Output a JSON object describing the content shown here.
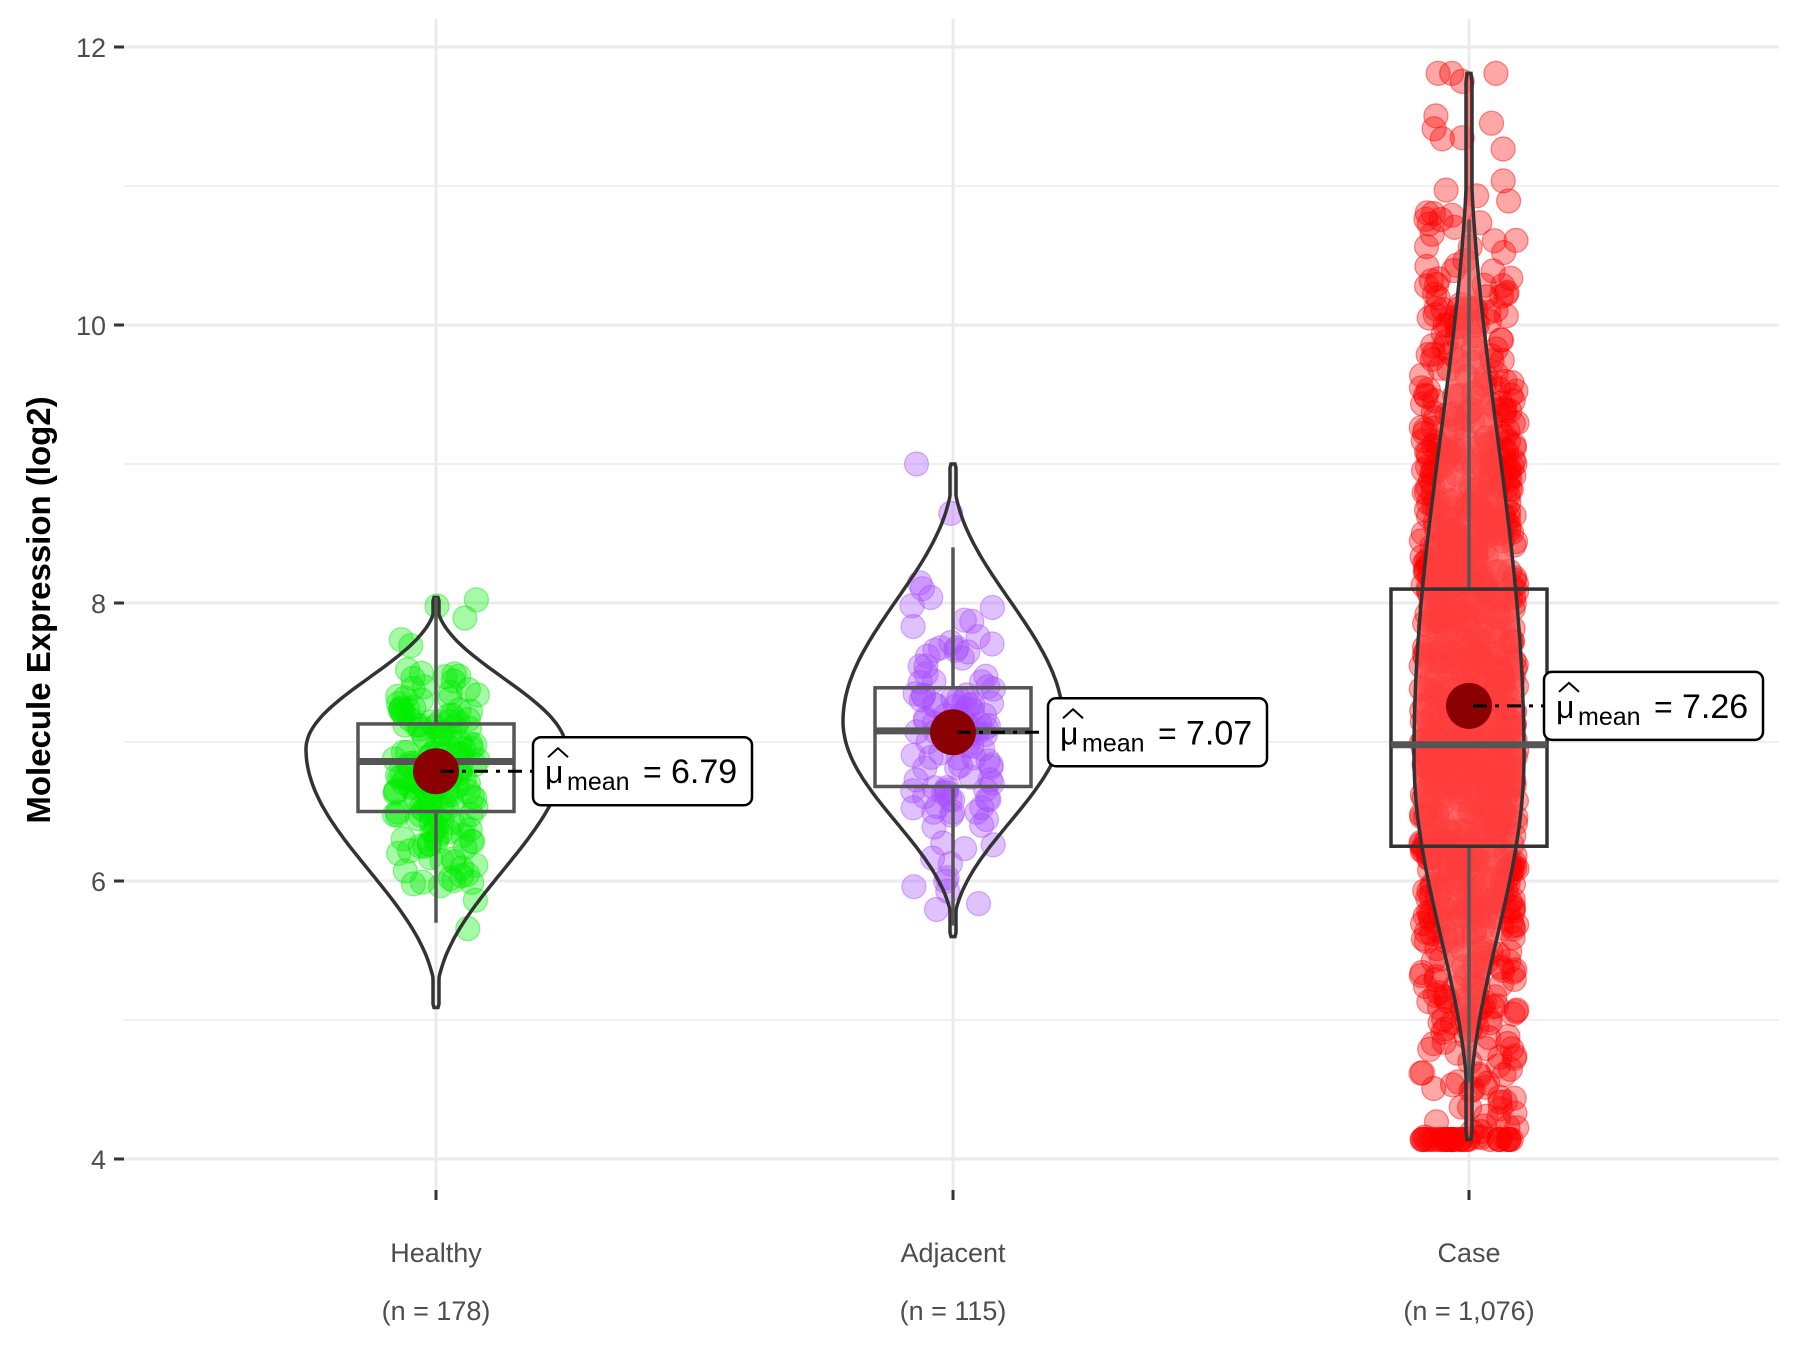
{
  "chart_data": {
    "type": "violin-box-jitter",
    "title": "",
    "xlabel": "",
    "ylabel": "Molecule Expression (log2)",
    "ylim": [
      3.8,
      12.2
    ],
    "yticks": [
      4,
      6,
      8,
      10,
      12
    ],
    "ytick_labels": [
      "4",
      "6",
      "8",
      "10",
      "12"
    ],
    "grid": true,
    "legend": "none",
    "groups": [
      {
        "name": "Healthy",
        "n_label": "(n = 178)",
        "n": 178,
        "color": "#00ee00",
        "violin": {
          "min": 5.09,
          "max": 8.04,
          "peak": 6.95
        },
        "box": {
          "q1": 6.5,
          "median": 6.86,
          "q3": 7.13,
          "whisker_low": 5.7,
          "whisker_high": 8.04
        },
        "mean": 6.79,
        "mean_label": "6.79"
      },
      {
        "name": "Adjacent",
        "n_label": "(n = 115)",
        "n": 115,
        "color": "#a64dff",
        "violin": {
          "min": 5.6,
          "max": 9.0,
          "peak": 7.15
        },
        "box": {
          "q1": 6.68,
          "median": 7.08,
          "q3": 7.39,
          "whisker_low": 5.68,
          "whisker_high": 8.4
        },
        "mean": 7.07,
        "mean_label": "7.07"
      },
      {
        "name": "Case",
        "n_label": "(n = 1,076)",
        "n": 1076,
        "color": "#ff0000",
        "violin": {
          "min": 4.14,
          "max": 11.81,
          "peak": 6.9
        },
        "box": {
          "q1": 6.25,
          "median": 6.98,
          "q3": 8.1,
          "whisker_low": 4.55,
          "whisker_high": 10.76
        },
        "mean": 7.26,
        "mean_label": "7.26"
      }
    ],
    "annotation": {
      "symbol": "μ",
      "subscript": "mean",
      "equals": "="
    },
    "mean_point_color": "#8b0000"
  }
}
